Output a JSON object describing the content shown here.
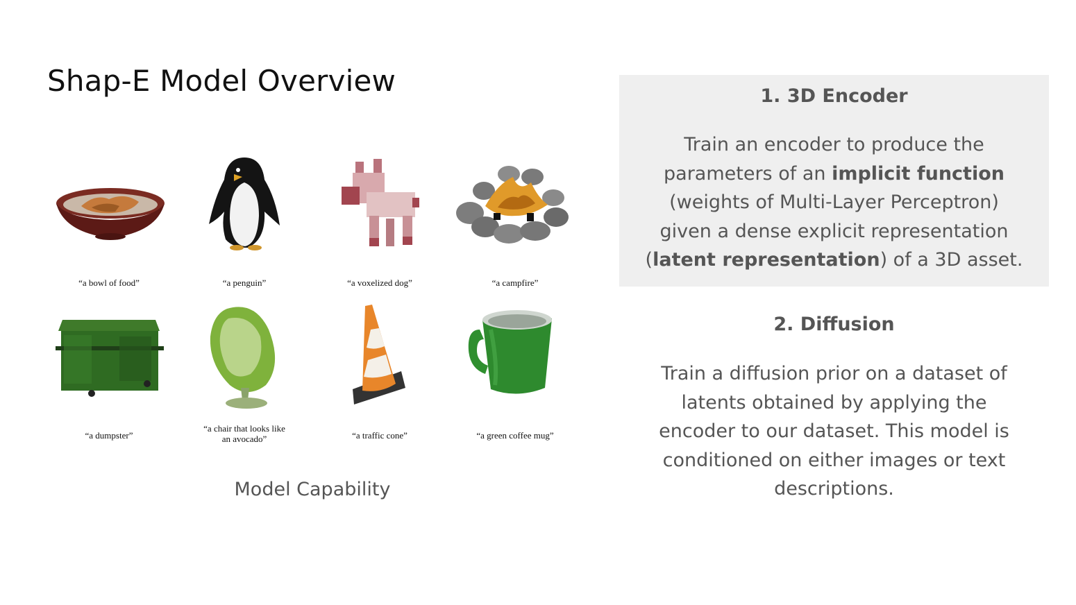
{
  "slide": {
    "title": "Shap-E Model Overview",
    "capability_label": "Model Capability"
  },
  "examples": [
    {
      "caption": "“a bowl of food”",
      "icon": "bowl-of-food-render"
    },
    {
      "caption": "“a penguin”",
      "icon": "penguin-render"
    },
    {
      "caption": "“a voxelized dog”",
      "icon": "voxelized-dog-render"
    },
    {
      "caption": "“a campfire”",
      "icon": "campfire-render"
    },
    {
      "caption": "“a dumpster”",
      "icon": "dumpster-render"
    },
    {
      "caption_line1": "“a chair that looks like",
      "caption_line2": "an avocado”",
      "icon": "avocado-chair-render"
    },
    {
      "caption": "“a traffic cone”",
      "icon": "traffic-cone-render"
    },
    {
      "caption": "“a green coffee mug”",
      "icon": "green-coffee-mug-render"
    }
  ],
  "encoder": {
    "heading": "1. 3D Encoder",
    "line1": "Train an encoder to produce the",
    "line2_pre": "parameters of an ",
    "line2_bold": "implicit function",
    "line3": "(weights of Multi-Layer Perceptron)",
    "line4": "given a dense explicit representation",
    "line5_pre": "(",
    "line5_bold": "latent representation",
    "line5_post": ") of a 3D asset."
  },
  "diffusion": {
    "heading": "2. Diffusion",
    "line1": "Train a diffusion prior on a dataset of",
    "line2": "latents obtained by applying the",
    "line3": "encoder to our dataset. This model is",
    "line4": "conditioned on either images or text",
    "line5": "descriptions."
  },
  "colors": {
    "panel_bg": "#efefef",
    "body_text": "#555555"
  }
}
